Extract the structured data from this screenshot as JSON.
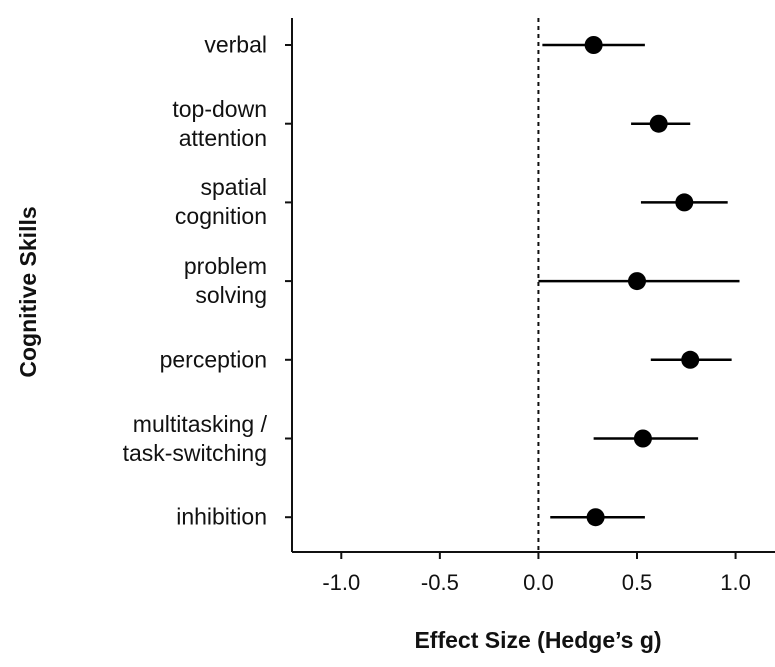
{
  "chart_data": {
    "type": "forest",
    "x_label": "Effect Size (Hedge’s g)",
    "y_label": "Cognitive Skills",
    "categories": [
      "verbal",
      "top-down\nattention",
      "spatial\ncognition",
      "problem\nsolving",
      "perception",
      "multitasking /\ntask-switching",
      "inhibition"
    ],
    "values": [
      0.28,
      0.61,
      0.74,
      0.5,
      0.77,
      0.53,
      0.29
    ],
    "lower": [
      0.02,
      0.47,
      0.52,
      0.0,
      0.57,
      0.28,
      0.06
    ],
    "upper": [
      0.54,
      0.77,
      0.96,
      1.02,
      0.98,
      0.81,
      0.54
    ],
    "color": "#000000",
    "xlim": [
      -1.25,
      1.2
    ],
    "xticks": [
      {
        "value": -1,
        "label": "-1.0"
      },
      {
        "value": -0.5,
        "label": "-0.5"
      },
      {
        "value": 0,
        "label": "0.0"
      },
      {
        "value": 0.5,
        "label": "0.5"
      },
      {
        "value": 1,
        "label": "1.0"
      }
    ],
    "reference_line": 0
  }
}
